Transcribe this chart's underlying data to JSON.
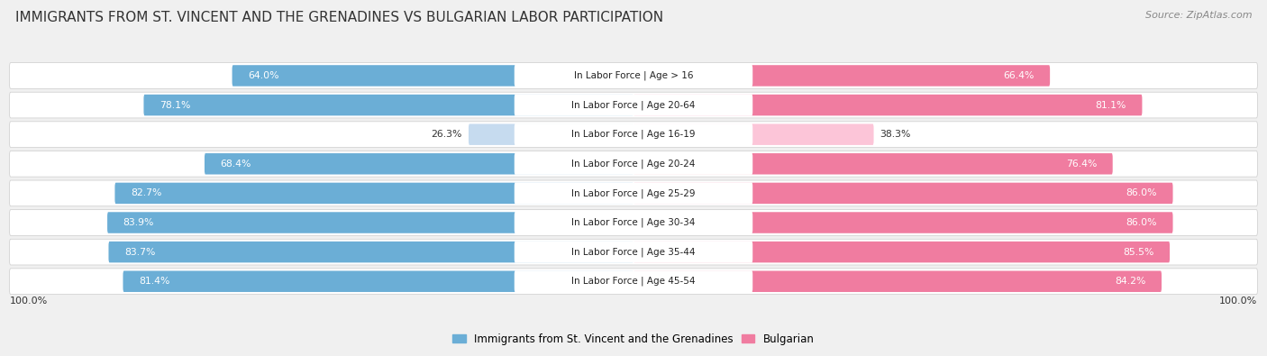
{
  "title": "IMMIGRANTS FROM ST. VINCENT AND THE GRENADINES VS BULGARIAN LABOR PARTICIPATION",
  "source": "Source: ZipAtlas.com",
  "categories": [
    "In Labor Force | Age > 16",
    "In Labor Force | Age 20-64",
    "In Labor Force | Age 16-19",
    "In Labor Force | Age 20-24",
    "In Labor Force | Age 25-29",
    "In Labor Force | Age 30-34",
    "In Labor Force | Age 35-44",
    "In Labor Force | Age 45-54"
  ],
  "left_values": [
    64.0,
    78.1,
    26.3,
    68.4,
    82.7,
    83.9,
    83.7,
    81.4
  ],
  "right_values": [
    66.4,
    81.1,
    38.3,
    76.4,
    86.0,
    86.0,
    85.5,
    84.2
  ],
  "left_color": "#6baed6",
  "right_color": "#f07ca0",
  "left_color_light": "#c6dbef",
  "right_color_light": "#fcc5d8",
  "left_label": "Immigrants from St. Vincent and the Grenadines",
  "right_label": "Bulgarian",
  "max_value": 100.0,
  "background_color": "#f0f0f0",
  "row_bg_color": "#e8e8e8",
  "bar_bg_color": "#ffffff",
  "figsize": [
    14.06,
    3.95
  ],
  "dpi": 100,
  "title_fontsize": 11,
  "label_fontsize": 7.8,
  "value_fontsize": 7.8
}
